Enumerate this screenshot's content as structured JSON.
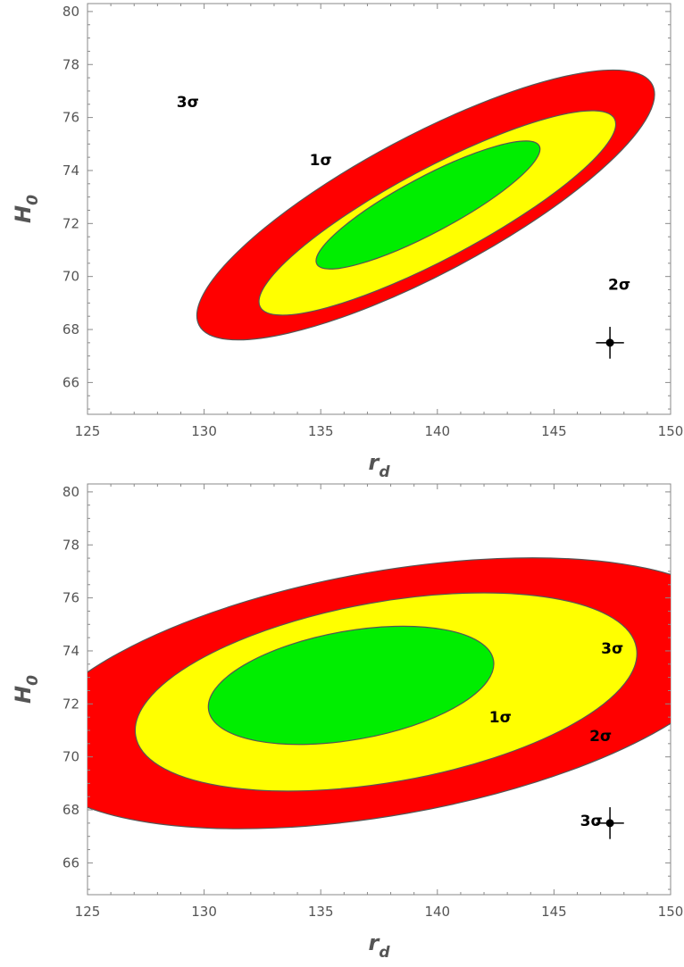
{
  "chart_data": [
    {
      "type": "contour",
      "panel": "top",
      "xlabel": {
        "main": "r",
        "sub": "d"
      },
      "ylabel": {
        "main": "H",
        "sub": "0"
      },
      "xlim": [
        125,
        150
      ],
      "ylim": [
        64.8,
        80.3
      ],
      "xticks": [
        "125",
        "130",
        "135",
        "140",
        "145",
        "150"
      ],
      "yticks": [
        "66",
        "68",
        "70",
        "72",
        "74",
        "76",
        "78",
        "80"
      ],
      "regions": [
        {
          "name": "3σ",
          "color": "#ff0000",
          "center": [
            139.5,
            72.7
          ],
          "radii": [
            11.0,
            2.6
          ],
          "angle_deg": -28
        },
        {
          "name": "2σ",
          "color": "#ffff00",
          "center": [
            140.0,
            72.4
          ],
          "radii": [
            8.6,
            1.7
          ],
          "angle_deg": -28
        },
        {
          "name": "1σ",
          "color": "#00ee00",
          "center": [
            139.6,
            72.7
          ],
          "radii": [
            5.4,
            1.05
          ],
          "angle_deg": -28
        }
      ],
      "labels": [
        {
          "text": "3σ",
          "x": 129.3,
          "y": 76.6
        },
        {
          "text": "2σ",
          "x": 147.8,
          "y": 69.7
        },
        {
          "text": "1σ",
          "x": 135.0,
          "y": 74.4
        }
      ],
      "point": {
        "x": 147.4,
        "y": 67.5,
        "yerr": 0.6,
        "xerr": 0.6
      }
    },
    {
      "type": "contour",
      "panel": "bottom",
      "xlabel": {
        "main": "r",
        "sub": "d"
      },
      "ylabel": {
        "main": "H",
        "sub": "0"
      },
      "xlim": [
        125,
        150
      ],
      "ylim": [
        64.8,
        80.3
      ],
      "xticks": [
        "125",
        "130",
        "135",
        "140",
        "145",
        "150"
      ],
      "yticks": [
        "66",
        "68",
        "70",
        "72",
        "74",
        "76",
        "78",
        "80"
      ],
      "regions": [
        {
          "name": "3σ",
          "color": "#ff0000",
          "center": [
            137.8,
            72.4
          ],
          "radii": [
            15.5,
            4.6
          ],
          "angle_deg": -10
        },
        {
          "name": "2σ",
          "color": "#ffff00",
          "center": [
            137.8,
            72.45
          ],
          "radii": [
            10.9,
            3.4
          ],
          "angle_deg": -10
        },
        {
          "name": "1σ",
          "color": "#00ee00",
          "center": [
            136.3,
            72.7
          ],
          "radii": [
            6.2,
            2.05
          ],
          "angle_deg": -10
        }
      ],
      "labels": [
        {
          "text": "3σ",
          "x": 147.5,
          "y": 74.1
        },
        {
          "text": "2σ",
          "x": 147.0,
          "y": 70.8
        },
        {
          "text": "1σ",
          "x": 142.7,
          "y": 71.5
        },
        {
          "text": "3σ",
          "x": 146.6,
          "y": 67.6
        }
      ],
      "point": {
        "x": 147.4,
        "y": 67.5,
        "yerr": 0.6,
        "xerr": 0.6
      }
    }
  ]
}
